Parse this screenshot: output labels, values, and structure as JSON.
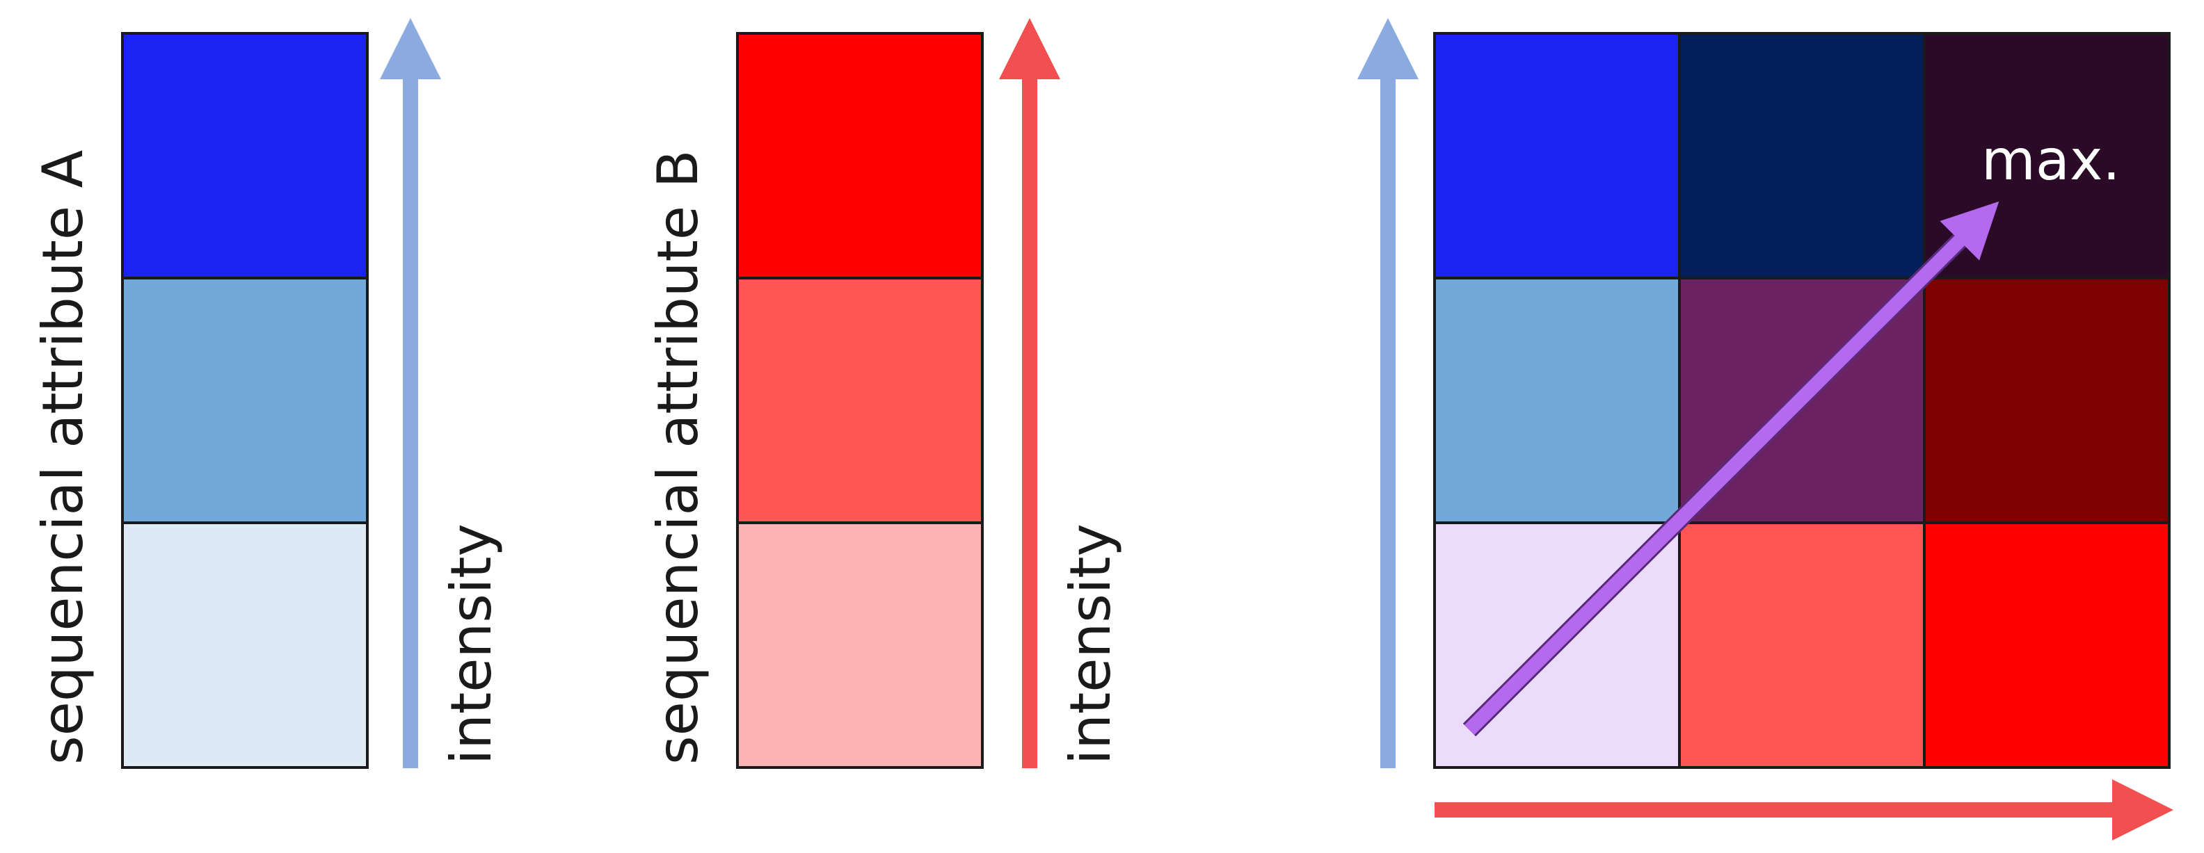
{
  "scale_a": {
    "label": "sequencial attribute A",
    "axis_label": "intensity",
    "colors_low_to_high": [
      "#dde9f5",
      "#72a9db",
      "#1a23f0"
    ]
  },
  "scale_b": {
    "label": "sequencial attribute B",
    "axis_label": "intensity",
    "colors_low_to_high": [
      "#fcb3b3",
      "#ff5555",
      "#ff0000"
    ]
  },
  "bivariate": {
    "max_label": "max.",
    "grid_rows_top_to_bottom": [
      [
        "#1a23f0",
        "#021f5c",
        "#2a0a27"
      ],
      [
        "#72a9db",
        "#6b2262",
        "#7f0000"
      ],
      [
        "#eddbfc",
        "#ff5555",
        "#ff0000"
      ]
    ]
  },
  "arrow_colors": {
    "attribute_a": "#8aaae0",
    "attribute_b": "#f25050",
    "combined": "#b469ef"
  }
}
